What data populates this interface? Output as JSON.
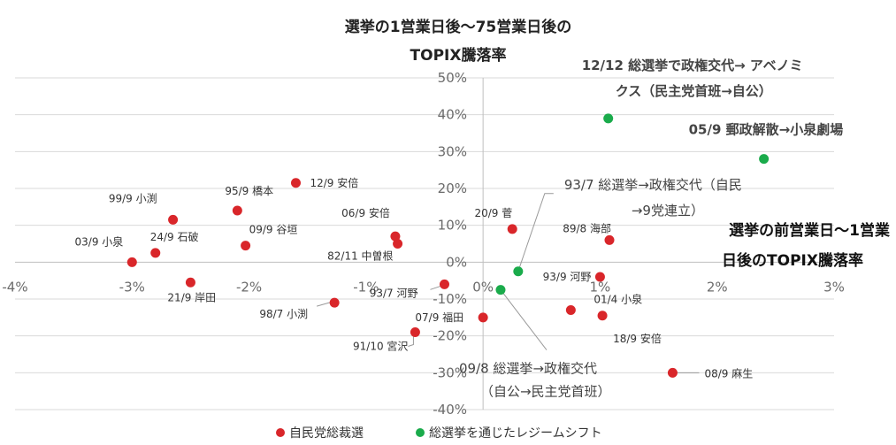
{
  "chart_data": {
    "type": "scatter",
    "title_lines": [
      "選挙の1営業日後～75営業日後の",
      "TOPIX騰落率"
    ],
    "x_axis_title_lines": [
      "選挙の前営業日～1営業",
      "日後のTOPIX騰落率"
    ],
    "xlim": [
      -4,
      3
    ],
    "ylim": [
      -40,
      50
    ],
    "x_ticks": [
      -4,
      -3,
      -2,
      -1,
      0,
      1,
      2,
      3
    ],
    "x_tick_labels": [
      "-4%",
      "-3%",
      "-2%",
      "-1%",
      "0%",
      "1%",
      "2%",
      "3%"
    ],
    "y_ticks": [
      50,
      40,
      30,
      20,
      10,
      0,
      -10,
      -20,
      -30,
      -40
    ],
    "y_tick_labels": [
      "50%",
      "40%",
      "30%",
      "20%",
      "10%",
      "0%",
      "-10%",
      "-20%",
      "-30%",
      "-40%"
    ],
    "grid": "horizontal",
    "legend_position": "bottom",
    "series": [
      {
        "name": "自民党総裁選",
        "color": "#d9262a",
        "points": [
          {
            "label": "12/9 安倍",
            "x": -1.6,
            "y": 21.5
          },
          {
            "label": "99/9 小渕",
            "x": -2.65,
            "y": 11.5
          },
          {
            "label": "95/9 橋本",
            "x": -2.1,
            "y": 14
          },
          {
            "label": "06/9 安倍",
            "x": -0.75,
            "y": 7
          },
          {
            "label": "82/11 中曽根",
            "x": -0.73,
            "y": 5
          },
          {
            "label": "09/9 谷垣",
            "x": -2.03,
            "y": 4.5
          },
          {
            "label": "24/9 石破",
            "x": -2.8,
            "y": 2.5
          },
          {
            "label": "03/9 小泉",
            "x": -3.0,
            "y": 0
          },
          {
            "label": "21/9 岸田",
            "x": -2.5,
            "y": -5.5
          },
          {
            "label": "98/7 小渕",
            "x": -1.27,
            "y": -11
          },
          {
            "label": "93/7 河野",
            "x": -0.33,
            "y": -6
          },
          {
            "label": "07/9 福田",
            "x": 0.0,
            "y": -15
          },
          {
            "label": "91/10 宮沢",
            "x": -0.58,
            "y": -19
          },
          {
            "label": "20/9 菅",
            "x": 0.25,
            "y": 9
          },
          {
            "label": "89/8 海部",
            "x": 1.08,
            "y": 6
          },
          {
            "label": "93/9 河野",
            "x": 1.0,
            "y": -4
          },
          {
            "label": "01/4 小泉",
            "x": 0.75,
            "y": -13
          },
          {
            "label": "18/9 安倍",
            "x": 1.02,
            "y": -14.5
          },
          {
            "label": "08/9 麻生",
            "x": 1.62,
            "y": -30
          }
        ]
      },
      {
        "name": "総選挙を通じたレジームシフト",
        "color": "#1aab4b",
        "points": [
          {
            "label_lines": [
              "12/12 総選挙で政権交代→ アベノミ",
              "クス（民主党首班→自公）"
            ],
            "x": 1.07,
            "y": 39
          },
          {
            "label_lines": [
              "05/9 郵政解散→小泉劇場"
            ],
            "x": 2.4,
            "y": 28
          },
          {
            "label_lines": [
              "93/7 総選挙→政権交代（自民",
              "→9党連立）"
            ],
            "x": 0.3,
            "y": -2.5
          },
          {
            "label_lines": [
              "09/8 総選挙→政権交代",
              "（自公→民主党首班）"
            ],
            "x": 0.15,
            "y": -7.5
          }
        ]
      }
    ]
  }
}
